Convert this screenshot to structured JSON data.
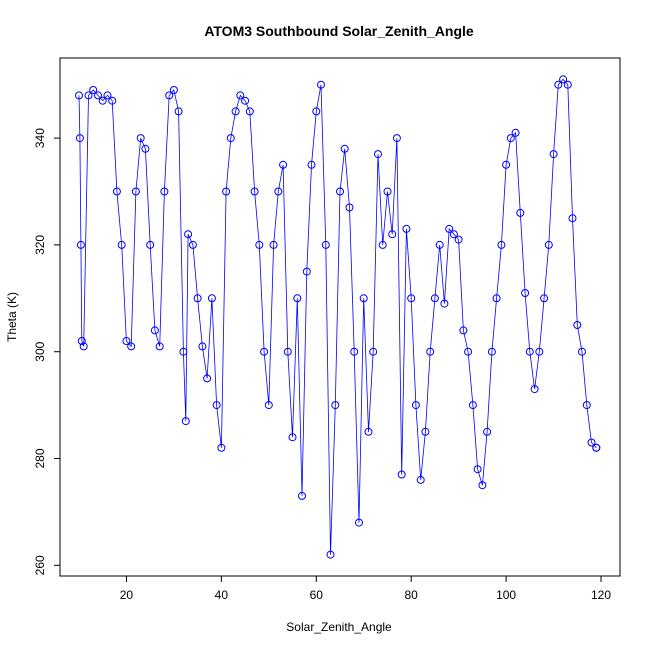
{
  "chart_data": {
    "type": "scatter",
    "title": "ATOM3 Southbound Solar_Zenith_Angle",
    "xlabel": "Solar_Zenith_Angle",
    "ylabel": "Theta (K)",
    "xlim": [
      6,
      124
    ],
    "ylim": [
      258,
      355
    ],
    "xticks": [
      20,
      40,
      60,
      80,
      100,
      120
    ],
    "yticks": [
      260,
      280,
      300,
      320,
      340
    ],
    "grid": false,
    "legend": "none",
    "marker": "open-circle",
    "connected": true,
    "color": "#0000ff",
    "series": [
      {
        "x": [
          10,
          10.2,
          10.4,
          10.6,
          11,
          12,
          13,
          14,
          15,
          16,
          17,
          18,
          19,
          20,
          21,
          22,
          23,
          24,
          25,
          26,
          27,
          28,
          29,
          30,
          31,
          32,
          32.5,
          33,
          34,
          35,
          36,
          37,
          38,
          39,
          40,
          41,
          42,
          43,
          44,
          45,
          46,
          47,
          48,
          49,
          50,
          51,
          52,
          53,
          54,
          55,
          56,
          57,
          58,
          59,
          60,
          61,
          62,
          63,
          64,
          65,
          66,
          67,
          68,
          69,
          70,
          71,
          72,
          73,
          74,
          75,
          76,
          77,
          78,
          79,
          80,
          81,
          82,
          83,
          84,
          85,
          86,
          87,
          88,
          89,
          90,
          91,
          92,
          93,
          94,
          95,
          96,
          97,
          98,
          99,
          100,
          101,
          102,
          103,
          104,
          105,
          106,
          107,
          108,
          109,
          110,
          111,
          112,
          113,
          114,
          115,
          116,
          117,
          118,
          119,
          119
        ],
        "y": [
          348,
          340,
          320,
          302,
          301,
          348,
          349,
          348,
          347,
          348,
          347,
          330,
          320,
          302,
          301,
          330,
          340,
          338,
          320,
          304,
          301,
          330,
          348,
          349,
          345,
          300,
          287,
          322,
          320,
          310,
          301,
          295,
          310,
          290,
          282,
          330,
          340,
          345,
          348,
          347,
          345,
          330,
          320,
          300,
          290,
          320,
          330,
          335,
          300,
          284,
          310,
          273,
          315,
          335,
          345,
          350,
          320,
          262,
          290,
          330,
          338,
          327,
          300,
          268,
          310,
          285,
          300,
          337,
          320,
          330,
          322,
          340,
          277,
          323,
          310,
          290,
          276,
          285,
          300,
          310,
          320,
          309,
          323,
          322,
          321,
          304,
          300,
          290,
          278,
          275,
          285,
          300,
          310,
          320,
          335,
          340,
          341,
          326,
          311,
          300,
          293,
          300,
          310,
          320,
          337,
          350,
          351,
          350,
          325,
          305,
          300,
          290,
          283,
          282,
          282
        ]
      }
    ]
  }
}
